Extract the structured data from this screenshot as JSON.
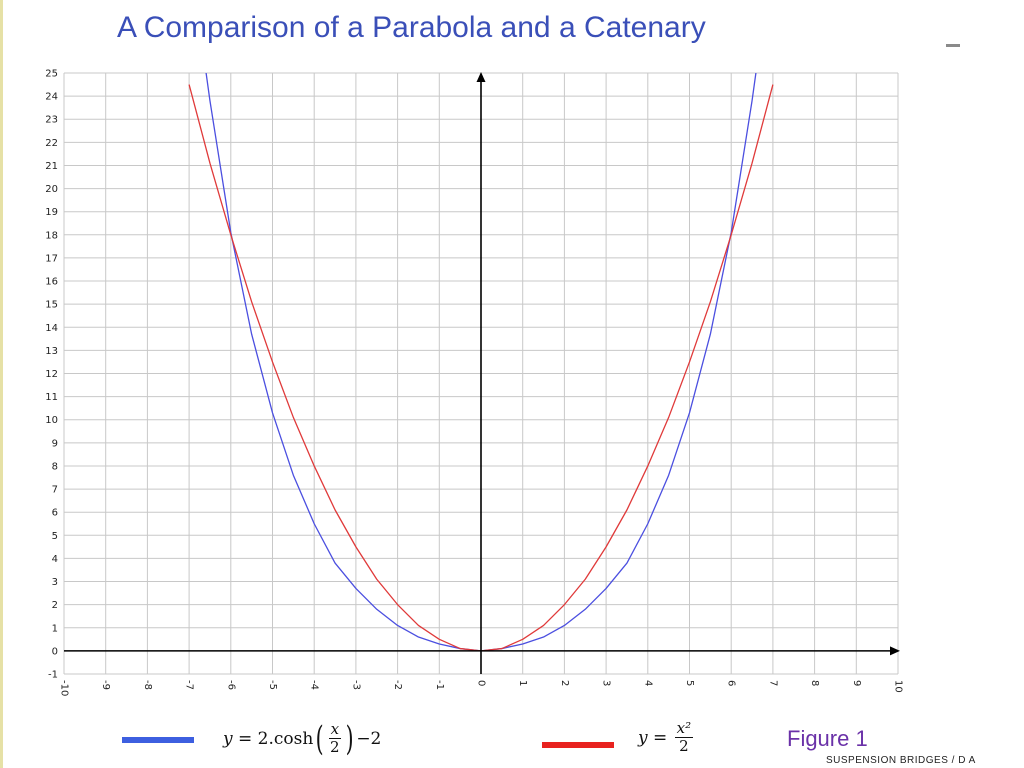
{
  "chart_data": {
    "type": "line",
    "title": "A Comparison of a Parabola and a Catenary",
    "xlabel": "",
    "ylabel": "",
    "xlim": [
      -10,
      10
    ],
    "ylim": [
      -1,
      25
    ],
    "x_ticks": [
      "-10",
      "-9",
      "-8",
      "-7",
      "-6",
      "-5",
      "-4",
      "-3",
      "-2",
      "-1",
      "0",
      "1",
      "2",
      "3",
      "4",
      "5",
      "6",
      "7",
      "8",
      "9",
      "10"
    ],
    "y_ticks": [
      "-1",
      "0",
      "1",
      "2",
      "3",
      "4",
      "5",
      "6",
      "7",
      "8",
      "9",
      "10",
      "11",
      "12",
      "13",
      "14",
      "15",
      "16",
      "17",
      "18",
      "19",
      "20",
      "21",
      "22",
      "23",
      "24",
      "25"
    ],
    "grid": true,
    "series": [
      {
        "name": "y = 2.cosh(x/2) - 2",
        "color": "#4b4fe0",
        "x": [
          -6.6,
          -6.5,
          -6,
          -5.5,
          -5,
          -4.5,
          -4,
          -3.5,
          -3,
          -2.5,
          -2,
          -1.5,
          -1,
          -0.5,
          0,
          0.5,
          1,
          1.5,
          2,
          2.5,
          3,
          3.5,
          4,
          4.5,
          5,
          5.5,
          6,
          6.5,
          6.6
        ],
        "y": [
          25.1,
          23.8,
          18.1,
          13.7,
          10.3,
          7.6,
          5.5,
          3.8,
          2.7,
          1.8,
          1.1,
          0.6,
          0.3,
          0.1,
          0,
          0.1,
          0.3,
          0.6,
          1.1,
          1.8,
          2.7,
          3.8,
          5.5,
          7.6,
          10.3,
          13.7,
          18.1,
          23.8,
          25.1
        ]
      },
      {
        "name": "y = x²/2",
        "color": "#e03a3a",
        "x": [
          -7,
          -6.5,
          -6,
          -5.5,
          -5,
          -4.5,
          -4,
          -3.5,
          -3,
          -2.5,
          -2,
          -1.5,
          -1,
          -0.5,
          0,
          0.5,
          1,
          1.5,
          2,
          2.5,
          3,
          3.5,
          4,
          4.5,
          5,
          5.5,
          6,
          6.5,
          7
        ],
        "y": [
          24.5,
          21.1,
          18,
          15.1,
          12.5,
          10.1,
          8,
          6.1,
          4.5,
          3.1,
          2,
          1.1,
          0.5,
          0.1,
          0,
          0.1,
          0.5,
          1.1,
          2,
          3.1,
          4.5,
          6.1,
          8,
          10.1,
          12.5,
          15.1,
          18,
          21.1,
          24.5
        ]
      }
    ]
  },
  "legend": {
    "catenary": {
      "color": "#3d5fe0",
      "lhs": "y",
      "eq": " = 2.cosh",
      "frac_num": "x",
      "frac_den": "2",
      "tail": "−2"
    },
    "parabola": {
      "color": "#e8221f",
      "lhs": "y",
      "eq": " = ",
      "frac_num": "x²",
      "frac_den": "2"
    }
  },
  "figure_label": "Figure 1",
  "footer": "SUSPENSION BRIDGES / D A"
}
